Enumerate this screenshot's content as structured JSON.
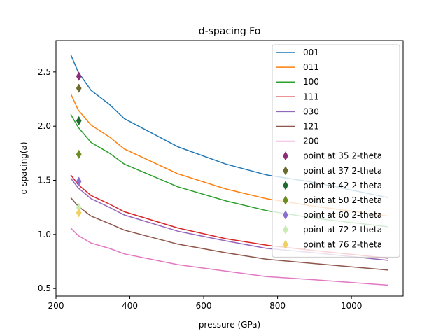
{
  "chart_data": {
    "type": "line",
    "title": "d-spacing Fo",
    "xlabel": "pressure (GPa)",
    "ylabel": "d-spacing(a)",
    "xlim": [
      200,
      1140
    ],
    "ylim": [
      0.43,
      2.79
    ],
    "xticks": [
      200,
      400,
      600,
      800,
      1000
    ],
    "yticks": [
      0.5,
      1.0,
      1.5,
      2.0,
      2.5
    ],
    "grid": false,
    "legend_position": "top-right",
    "x": [
      240,
      260,
      295,
      345,
      385,
      530,
      660,
      770,
      900,
      1100
    ],
    "series": [
      {
        "name": "001",
        "color": "#1f77b4",
        "values": [
          2.66,
          2.5,
          2.33,
          2.2,
          2.07,
          1.81,
          1.65,
          1.55,
          1.48,
          1.34
        ]
      },
      {
        "name": "011",
        "color": "#ff7f0e",
        "values": [
          2.3,
          2.15,
          2.01,
          1.9,
          1.79,
          1.56,
          1.42,
          1.33,
          1.26,
          1.17
        ]
      },
      {
        "name": "100",
        "color": "#2ca02c",
        "values": [
          2.11,
          1.99,
          1.85,
          1.75,
          1.65,
          1.44,
          1.31,
          1.22,
          1.15,
          1.07
        ]
      },
      {
        "name": "111",
        "color": "#d62728",
        "values": [
          1.55,
          1.46,
          1.36,
          1.28,
          1.21,
          1.06,
          0.96,
          0.9,
          0.85,
          0.78
        ]
      },
      {
        "name": "030",
        "color": "#9467bd",
        "values": [
          1.52,
          1.43,
          1.33,
          1.25,
          1.18,
          1.03,
          0.94,
          0.87,
          0.83,
          0.76
        ]
      },
      {
        "name": "121",
        "color": "#8c564b",
        "values": [
          1.34,
          1.26,
          1.17,
          1.1,
          1.04,
          0.91,
          0.83,
          0.77,
          0.73,
          0.67
        ]
      },
      {
        "name": "200",
        "color": "#e377c2",
        "values": [
          1.06,
          0.99,
          0.92,
          0.87,
          0.82,
          0.72,
          0.66,
          0.61,
          0.58,
          0.53
        ]
      }
    ],
    "points": [
      {
        "name": "point at 35 2-theta",
        "color": "#8c2d7a",
        "x": 262,
        "y": 2.46
      },
      {
        "name": "point at 37 2-theta",
        "color": "#6b6b2d",
        "x": 262,
        "y": 2.35
      },
      {
        "name": "point at 42 2-theta",
        "color": "#1e6b2d",
        "x": 262,
        "y": 2.05
      },
      {
        "name": "point at 50 2-theta",
        "color": "#6b8c1e",
        "x": 262,
        "y": 1.74
      },
      {
        "name": "point at 60 2-theta",
        "color": "#8a6fd0",
        "x": 262,
        "y": 1.49
      },
      {
        "name": "point at 72 2-theta",
        "color": "#c8ecb4",
        "x": 262,
        "y": 1.25
      },
      {
        "name": "point at 76 2-theta",
        "color": "#f0d060",
        "x": 262,
        "y": 1.2
      }
    ]
  }
}
